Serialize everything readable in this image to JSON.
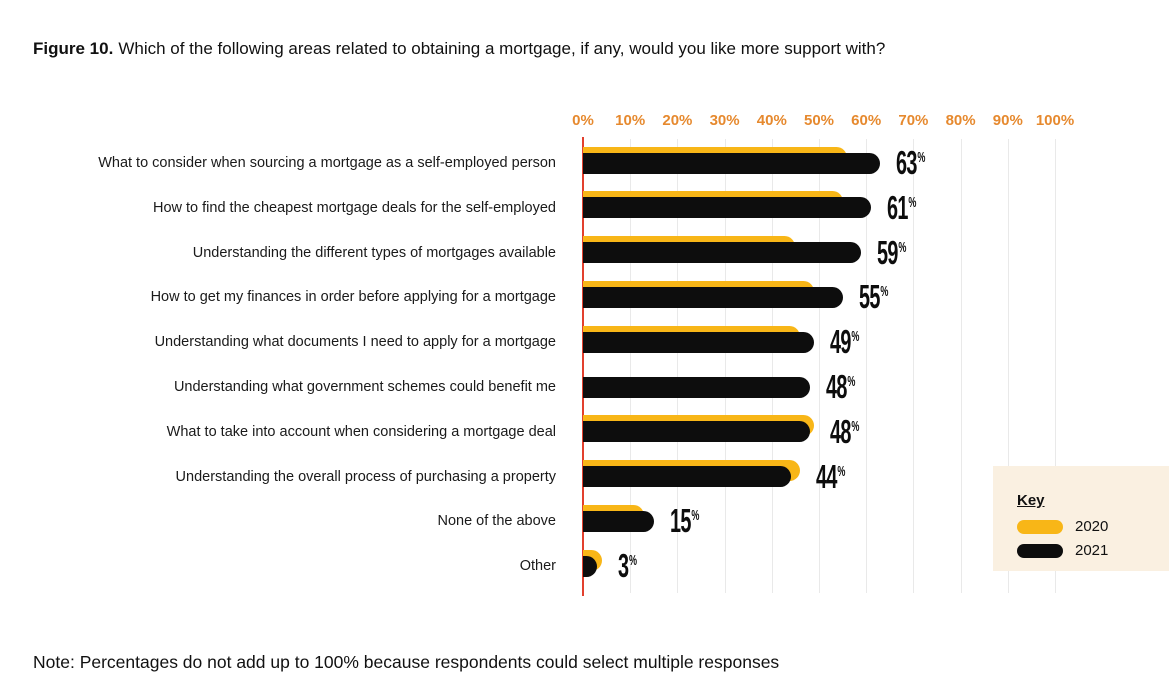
{
  "figure": {
    "label": "Figure 10.",
    "title": "Which of the following areas related to obtaining a mortgage, if any, would you like more support with?"
  },
  "note": "Note: Percentages do not add up to 100% because respondents could select multiple responses",
  "legend": {
    "title": "Key",
    "items": [
      {
        "label": "2020",
        "color": "#F8B617"
      },
      {
        "label": "2021",
        "color": "#0D0D0D"
      }
    ]
  },
  "colors": {
    "axis_labels": "#E6892E",
    "zero_line": "#E2402E",
    "gridline": "#E9E9E9",
    "bar_2020": "#F8B617",
    "bar_2021": "#0D0D0D",
    "legend_background": "#FAF0E1",
    "text": "#111111"
  },
  "chart_data": {
    "type": "bar",
    "orientation": "horizontal",
    "title": "Which of the following areas related to obtaining a mortgage, if any, would you like more support with?",
    "xlabel": "",
    "ylabel": "",
    "xlim": [
      0,
      100
    ],
    "x_ticks": [
      "0%",
      "10%",
      "20%",
      "30%",
      "40%",
      "50%",
      "60%",
      "70%",
      "80%",
      "90%",
      "100%"
    ],
    "grid": true,
    "legend_position": "bottom-right",
    "categories": [
      "What to consider when sourcing a mortgage as a self-employed person",
      "How to find the cheapest mortgage deals for the self-employed",
      "Understanding the different types of mortgages available",
      "How to get my finances in order before applying for a mortgage",
      "Understanding what documents I need to apply for a mortgage",
      "Understanding what government schemes could benefit me",
      "What to take into account when considering a mortgage deal",
      "Understanding the overall process of purchasing a property",
      "None of the above",
      "Other"
    ],
    "series": [
      {
        "name": "2020",
        "color": "#F8B617",
        "values": [
          56,
          55,
          45,
          49,
          46,
          null,
          49,
          46,
          13,
          4
        ]
      },
      {
        "name": "2021",
        "color": "#0D0D0D",
        "values": [
          63,
          61,
          59,
          55,
          49,
          48,
          48,
          44,
          15,
          3
        ]
      }
    ],
    "value_labels_series": "2021",
    "value_labels": [
      "63%",
      "61%",
      "59%",
      "55%",
      "49%",
      "48%",
      "48%",
      "44%",
      "15%",
      "3%"
    ]
  }
}
